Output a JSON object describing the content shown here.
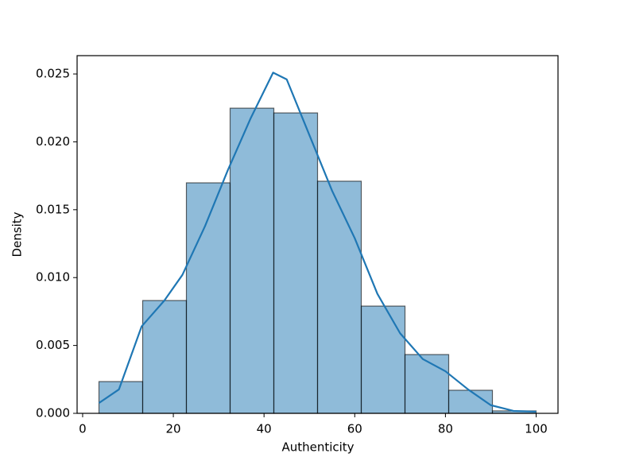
{
  "chart_data": {
    "type": "histogram",
    "xlabel": "Authenticity",
    "ylabel": "Density",
    "bins": [
      3.6,
      13.24,
      22.88,
      32.52,
      42.16,
      51.8,
      61.44,
      71.08,
      80.72,
      90.36,
      100
    ],
    "values": [
      0.00234,
      0.00831,
      0.01698,
      0.02248,
      0.02213,
      0.0171,
      0.0079,
      0.00433,
      0.0017,
      0.00018
    ],
    "color": "#1f77b4",
    "edgecolor": "#000000",
    "kde": {
      "color": "#1f77b4",
      "x": [
        3.6,
        8,
        13,
        18,
        22,
        27,
        32,
        37,
        42,
        45,
        50,
        55,
        60,
        65,
        70,
        75,
        80,
        85,
        90,
        95,
        100
      ],
      "values": [
        0.00076,
        0.00176,
        0.0064,
        0.0083,
        0.0102,
        0.0138,
        0.0179,
        0.0217,
        0.0251,
        0.0246,
        0.0205,
        0.0164,
        0.0129,
        0.0088,
        0.0059,
        0.004,
        0.0031,
        0.00176,
        0.0006,
        0.00018,
        0.00012
      ]
    },
    "xlim": [
      -1.22,
      104.82
    ],
    "ylim": [
      0,
      0.02635
    ],
    "xticks": [
      0,
      20,
      40,
      60,
      80,
      100
    ],
    "yticks": [
      {
        "value": 0,
        "label": "0.000"
      },
      {
        "value": 0.005,
        "label": "0.005"
      },
      {
        "value": 0.01,
        "label": "0.010"
      },
      {
        "value": 0.015,
        "label": "0.015"
      },
      {
        "value": 0.02,
        "label": "0.020"
      },
      {
        "value": 0.025,
        "label": "0.025"
      }
    ]
  }
}
